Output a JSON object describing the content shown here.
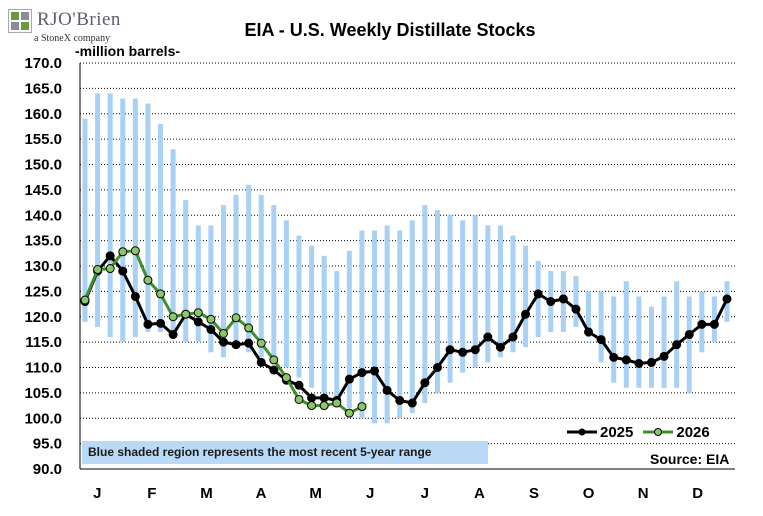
{
  "header": {
    "brand": "RJO'Brien",
    "brand_sub": "a StoneX company",
    "title": "EIA - U.S. Weekly Distillate Stocks",
    "unit_label": "-million barrels-"
  },
  "footer": {
    "note": "Blue shaded region represents the most recent 5-year range",
    "source": "Source: EIA"
  },
  "colors": {
    "range_band": "#a9d1f5",
    "series_2025": "#000000",
    "series_2026_line": "#3f8f2a",
    "series_2026_marker": "#8cc66a",
    "note_bg": "#b9d9f7",
    "logo_green": "#6a9a3a",
    "logo_gray": "#8a8d95"
  },
  "chart_data": {
    "type": "line",
    "title": "EIA - U.S. Weekly Distillate Stocks",
    "ylabel": "-million barrels-",
    "ylim": [
      90,
      170
    ],
    "y_ticks": [
      "90.0",
      "95.0",
      "100.0",
      "105.0",
      "110.0",
      "115.0",
      "120.0",
      "125.0",
      "130.0",
      "135.0",
      "140.0",
      "145.0",
      "150.0",
      "155.0",
      "160.0",
      "165.0",
      "170.0"
    ],
    "x_ticks": [
      "J",
      "F",
      "M",
      "A",
      "M",
      "J",
      "J",
      "A",
      "S",
      "O",
      "N",
      "D"
    ],
    "weeks": 52,
    "gridlines": "horizontal dotted",
    "legend_position": "bottom-right",
    "range_5yr": {
      "low": [
        119,
        118,
        116,
        115,
        116,
        117,
        117,
        117,
        115,
        115,
        113,
        112,
        114,
        113,
        112,
        111,
        110,
        108,
        106,
        105,
        103,
        102,
        100,
        99,
        99,
        100,
        101,
        103,
        105,
        107,
        109,
        110,
        111,
        112,
        113,
        114,
        116,
        117,
        117,
        118,
        116,
        111,
        107,
        106,
        106,
        106,
        106,
        106,
        105,
        113,
        115,
        119
      ],
      "high": [
        159,
        164,
        164,
        163,
        163,
        162,
        158,
        153,
        143,
        138,
        138,
        142,
        144,
        146,
        144,
        142,
        139,
        136,
        134,
        132,
        129,
        133,
        137,
        137,
        138,
        137,
        139,
        142,
        141,
        140,
        139,
        140,
        138,
        138,
        136,
        134,
        131,
        129,
        129,
        128,
        125,
        125,
        124,
        127,
        124,
        122,
        124,
        127,
        124,
        125,
        124,
        127
      ]
    },
    "series": [
      {
        "name": "2025",
        "values": [
          123.0,
          129.0,
          132.0,
          129.0,
          124.0,
          118.5,
          118.7,
          116.5,
          120.5,
          119.0,
          117.5,
          115.0,
          114.5,
          114.8,
          111.0,
          109.5,
          107.5,
          106.5,
          104.0,
          104.0,
          103.5,
          107.7,
          109.0,
          109.3,
          105.5,
          103.5,
          103.0,
          107.0,
          110.0,
          113.5,
          113.0,
          113.5,
          116.0,
          114.0,
          116.0,
          120.5,
          124.5,
          123.0,
          123.5,
          121.5,
          117.0,
          115.5,
          112.0,
          111.5,
          110.8,
          111.0,
          112.2,
          114.5,
          116.5,
          118.5,
          118.5,
          123.5
        ]
      },
      {
        "name": "2026",
        "values": [
          123.3,
          129.3,
          129.5,
          132.8,
          133.0,
          127.2,
          124.5,
          120.0,
          120.5,
          120.8,
          119.5,
          116.7,
          119.8,
          117.8,
          114.8,
          111.5,
          108.0,
          103.7,
          102.5,
          102.5,
          103.0,
          101.0,
          102.3
        ]
      }
    ]
  }
}
